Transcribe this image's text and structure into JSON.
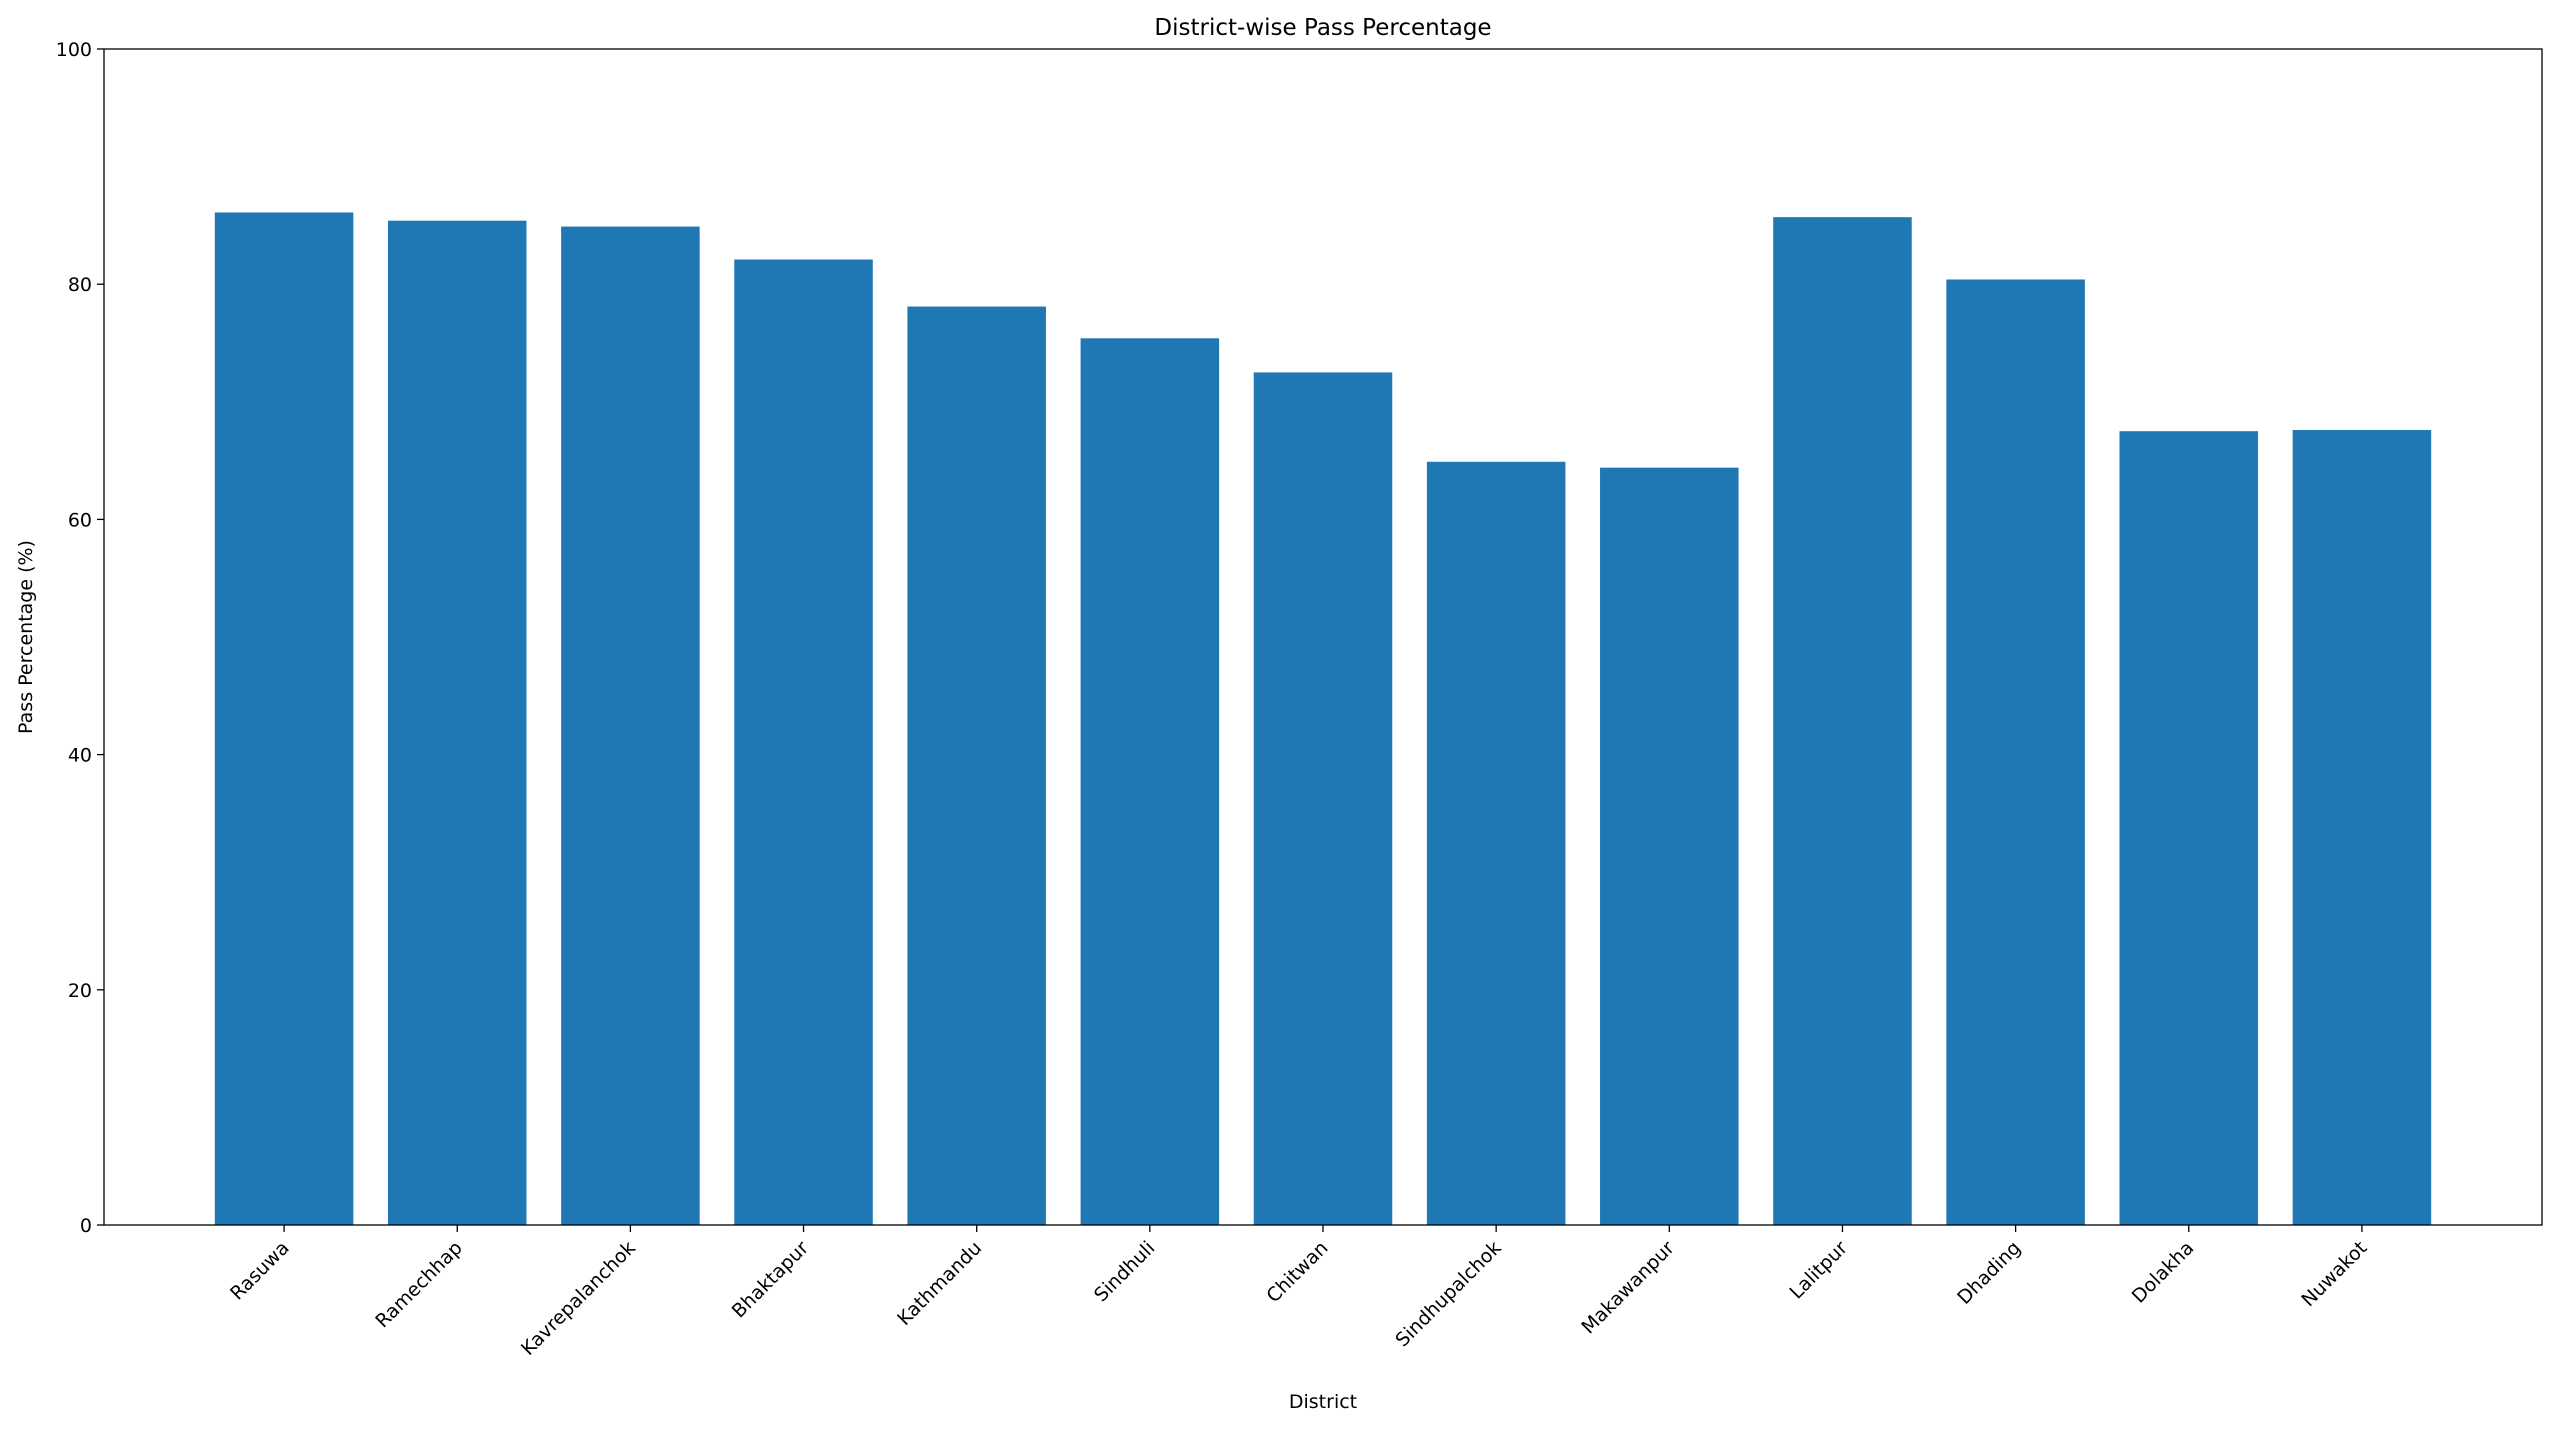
{
  "chart_data": {
    "type": "bar",
    "title": "District-wise Pass Percentage",
    "x_label": "District",
    "y_label": "Pass Percentage (%)",
    "categories": [
      "Rasuwa",
      "Ramechhap",
      "Kavrepalanchok",
      "Bhaktapur",
      "Kathmandu",
      "Sindhuli",
      "Chitwan",
      "Sindhupalchok",
      "Makawanpur",
      "Lalitpur",
      "Dhading",
      "Dolakha",
      "Nuwakot"
    ],
    "values": [
      86.1,
      85.4,
      84.9,
      82.1,
      78.1,
      75.4,
      72.5,
      64.9,
      64.4,
      85.7,
      80.4,
      67.5,
      67.6
    ],
    "color": "#1f77b4",
    "ylim": [
      0,
      100
    ],
    "yticks": [
      0,
      20,
      40,
      60,
      80,
      100
    ],
    "grid": false
  }
}
